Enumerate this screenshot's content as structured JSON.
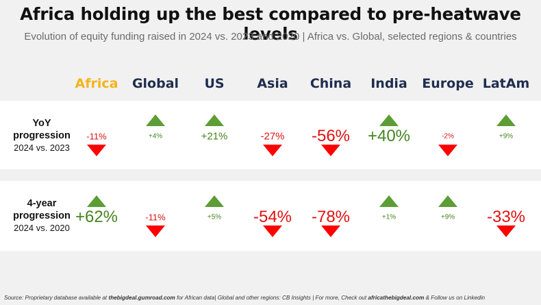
{
  "title": "Africa holding up the best compared to pre-heatwave levels",
  "subtitle": "Evolution of equity funding raised in 2024 vs. 2023 and 2020 | Africa vs. Global, selected regions & countries",
  "colors": {
    "africa": "#f5b31a",
    "navy": "#1f2d4e",
    "up": "#5c9d35",
    "down": "#ff0000",
    "text_green": "#43851f",
    "text_red": "#e01010"
  },
  "chart_data": {
    "type": "table",
    "columns": [
      "Africa",
      "Global",
      "US",
      "Asia",
      "China",
      "India",
      "Europe",
      "LatAm"
    ],
    "rows": [
      {
        "label_line1": "YoY",
        "label_line2": "progression",
        "label_line3": "2024 vs. 2023",
        "values": [
          -11,
          4,
          21,
          -27,
          -56,
          40,
          -2,
          9
        ],
        "labels": [
          "-11%",
          "+4%",
          "+21%",
          "-27%",
          "-56%",
          "+40%",
          "-2%",
          "+9%"
        ]
      },
      {
        "label_line1": "4-year",
        "label_line2": "progression",
        "label_line3": "2024 vs. 2020",
        "values": [
          62,
          -11,
          5,
          -54,
          -78,
          1,
          9,
          -33
        ],
        "labels": [
          "+62%",
          "-11%",
          "+5%",
          "-54%",
          "-78%",
          "+1%",
          "+9%",
          "-33%"
        ]
      }
    ]
  },
  "source": {
    "part1": "Source: Proprietary database available at ",
    "link1": "thebigdeal.gumroad.com",
    "part2": " for African data| Global and other regions: CB Insights | For more, Check out ",
    "link2": "africathebigdeal.com",
    "part3": " & Follow us on Linkedin"
  }
}
